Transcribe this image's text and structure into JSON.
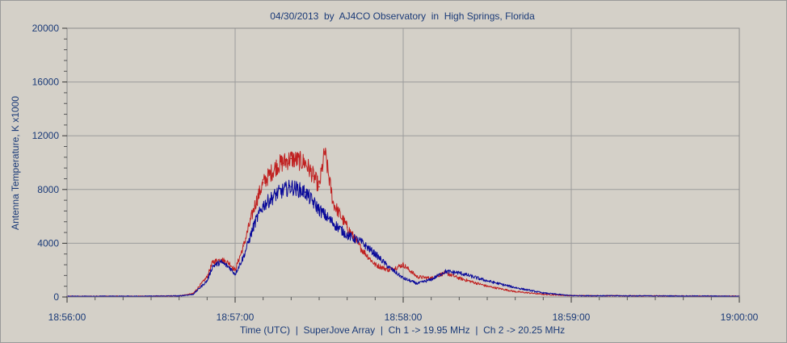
{
  "chart_data": {
    "type": "line",
    "title": "04/30/2013  by  AJ4CO Observatory  in  High Springs, Florida",
    "xlabel": "Time (UTC)  |  SuperJove Array  |  Ch 1 -> 19.95 MHz  |  Ch 2 -> 20.25 MHz",
    "ylabel": "Antenna Temperature, K x1000",
    "xlim": [
      "18:56:00",
      "19:00:00"
    ],
    "ylim": [
      0,
      20000
    ],
    "x_ticks": [
      "18:56:00",
      "18:57:00",
      "18:58:00",
      "18:59:00",
      "19:00:00"
    ],
    "y_ticks": [
      "0",
      "4000",
      "8000",
      "12000",
      "16000",
      "20000"
    ],
    "grid": true,
    "colors": {
      "ch1": "#0a0a9a",
      "ch2": "#c02020",
      "grid": "#9c9c9c",
      "text": "#1a3a78",
      "plot_bg": "#d4d0c8"
    },
    "series": [
      {
        "name": "Ch 1 -> 19.95 MHz",
        "x": [
          "18:56:00",
          "18:56:30",
          "18:56:40",
          "18:56:45",
          "18:56:50",
          "18:56:52",
          "18:56:55",
          "18:56:58",
          "18:57:00",
          "18:57:03",
          "18:57:07",
          "18:57:10",
          "18:57:15",
          "18:57:20",
          "18:57:25",
          "18:57:30",
          "18:57:35",
          "18:57:40",
          "18:57:45",
          "18:57:50",
          "18:57:55",
          "18:58:00",
          "18:58:05",
          "18:58:10",
          "18:58:15",
          "18:58:20",
          "18:58:30",
          "18:58:40",
          "18:58:50",
          "18:59:00",
          "19:00:00"
        ],
        "values": [
          50,
          60,
          80,
          200,
          1200,
          2300,
          2600,
          2200,
          1700,
          3000,
          5500,
          6800,
          7700,
          8200,
          7800,
          6500,
          5500,
          4600,
          4100,
          3200,
          2200,
          1400,
          1000,
          1300,
          1900,
          1800,
          1200,
          700,
          300,
          100,
          60
        ]
      },
      {
        "name": "Ch 2 -> 20.25 MHz",
        "x": [
          "18:56:00",
          "18:56:30",
          "18:56:40",
          "18:56:45",
          "18:56:50",
          "18:56:52",
          "18:56:55",
          "18:56:58",
          "18:57:00",
          "18:57:03",
          "18:57:07",
          "18:57:10",
          "18:57:15",
          "18:57:20",
          "18:57:25",
          "18:57:28",
          "18:57:30",
          "18:57:32",
          "18:57:35",
          "18:57:40",
          "18:57:45",
          "18:57:50",
          "18:57:55",
          "18:58:00",
          "18:58:05",
          "18:58:10",
          "18:58:15",
          "18:58:20",
          "18:58:30",
          "18:58:40",
          "18:58:50",
          "18:59:00",
          "19:00:00"
        ],
        "values": [
          50,
          60,
          80,
          250,
          1500,
          2600,
          2800,
          2500,
          2000,
          3800,
          6800,
          8500,
          9800,
          10300,
          10000,
          9000,
          8200,
          10800,
          7000,
          5200,
          3600,
          2400,
          2000,
          2400,
          1500,
          1400,
          1800,
          1400,
          800,
          400,
          200,
          100,
          60
        ]
      }
    ]
  }
}
